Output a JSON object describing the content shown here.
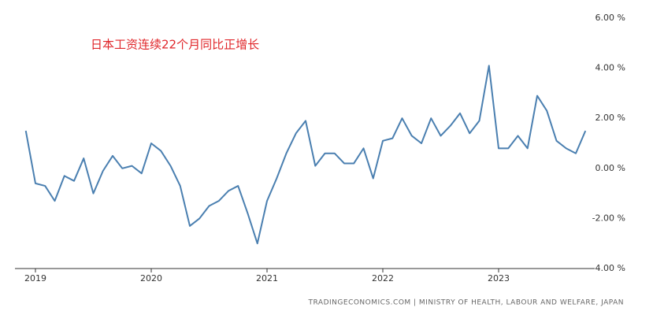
{
  "chart_data": {
    "type": "line",
    "title": "日本工资连续22个月同比正增长",
    "source": "TRADINGECONOMICS.COM  |  MINISTRY OF HEALTH, LABOUR AND WELFARE, JAPAN",
    "x": [
      "2018-12",
      "2019-01",
      "2019-02",
      "2019-03",
      "2019-04",
      "2019-05",
      "2019-06",
      "2019-07",
      "2019-08",
      "2019-09",
      "2019-10",
      "2019-11",
      "2019-12",
      "2020-01",
      "2020-02",
      "2020-03",
      "2020-04",
      "2020-05",
      "2020-06",
      "2020-07",
      "2020-08",
      "2020-09",
      "2020-10",
      "2020-11",
      "2020-12",
      "2021-01",
      "2021-02",
      "2021-03",
      "2021-04",
      "2021-05",
      "2021-06",
      "2021-07",
      "2021-08",
      "2021-09",
      "2021-10",
      "2021-11",
      "2021-12",
      "2022-01",
      "2022-02",
      "2022-03",
      "2022-04",
      "2022-05",
      "2022-06",
      "2022-07",
      "2022-08",
      "2022-09",
      "2022-10",
      "2022-11",
      "2022-12",
      "2023-01",
      "2023-02",
      "2023-03",
      "2023-04",
      "2023-05",
      "2023-06",
      "2023-07",
      "2023-08",
      "2023-09",
      "2023-10"
    ],
    "series": [
      {
        "color": "#4a7fb0",
        "values": [
          1.5,
          -0.6,
          -0.7,
          -1.3,
          -0.3,
          -0.5,
          0.4,
          -1.0,
          -0.1,
          0.5,
          0.0,
          0.1,
          -0.2,
          1.0,
          0.7,
          0.1,
          -0.7,
          -2.3,
          -2.0,
          -1.5,
          -1.3,
          -0.9,
          -0.7,
          -1.8,
          -3.0,
          -1.3,
          -0.4,
          0.6,
          1.4,
          1.9,
          0.1,
          0.6,
          0.6,
          0.2,
          0.2,
          0.8,
          -0.4,
          1.1,
          1.2,
          2.0,
          1.3,
          1.0,
          2.0,
          1.3,
          1.7,
          2.2,
          1.4,
          1.9,
          4.1,
          0.8,
          0.8,
          1.3,
          0.8,
          2.9,
          2.3,
          1.1,
          0.8,
          0.6,
          1.5
        ]
      }
    ],
    "xticks": [
      {
        "value": "2019-01",
        "label": "2019"
      },
      {
        "value": "2020-01",
        "label": "2020"
      },
      {
        "value": "2021-01",
        "label": "2021"
      },
      {
        "value": "2022-01",
        "label": "2022"
      },
      {
        "value": "2023-01",
        "label": "2023"
      }
    ],
    "ylim": [
      -4,
      6
    ],
    "yticks": [
      {
        "value": -4,
        "label": "-4.00 %"
      },
      {
        "value": -2,
        "label": "-2.00 %"
      },
      {
        "value": 0,
        "label": "0.00 %"
      },
      {
        "value": 2,
        "label": "2.00 %"
      },
      {
        "value": 4,
        "label": "4.00 %"
      },
      {
        "value": 6,
        "label": "6.00 %"
      }
    ],
    "grid": false
  }
}
